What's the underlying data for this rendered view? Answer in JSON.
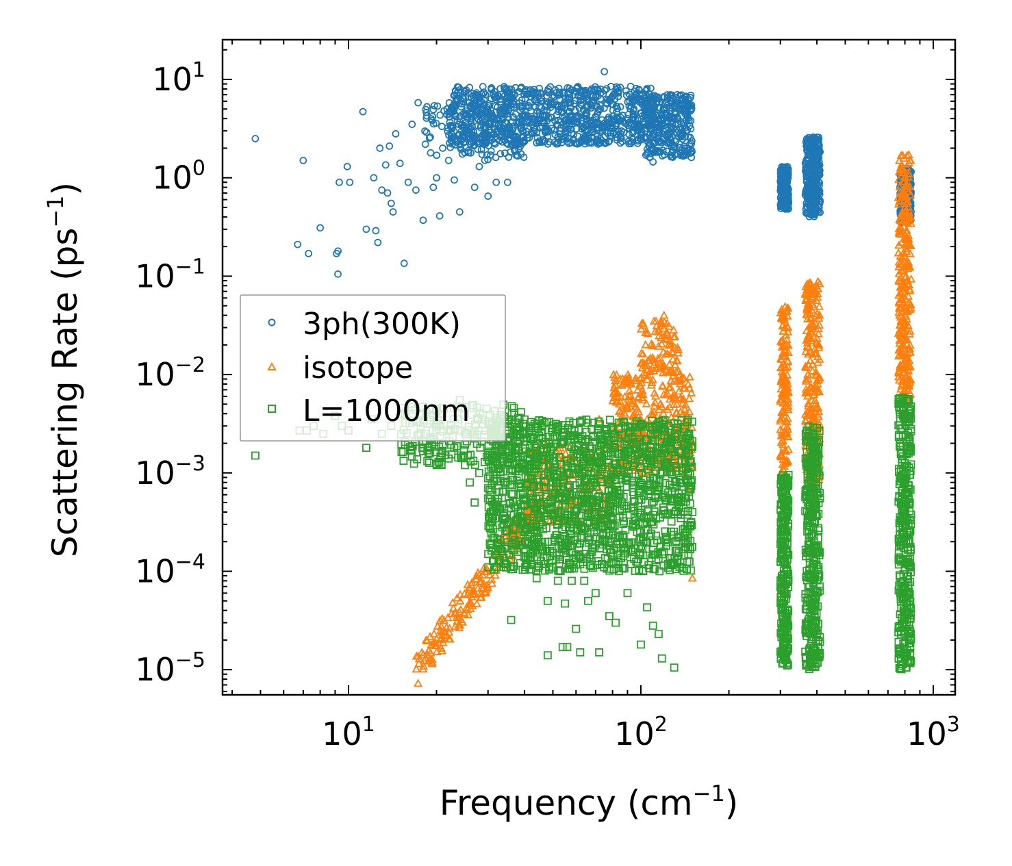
{
  "chart_data": {
    "type": "scatter",
    "xscale": "log",
    "yscale": "log",
    "xlabel": "Frequency (cm",
    "xlabel_sup": "−1",
    "xlabel_end": ")",
    "ylabel": "Scattering Rate (ps",
    "ylabel_sup": "−1",
    "ylabel_end": ")",
    "xlim": [
      3.7,
      1190
    ],
    "ylim": [
      5.5e-06,
      25
    ],
    "x_ticks": [
      {
        "value": 10,
        "base": "10",
        "exp": "1"
      },
      {
        "value": 100,
        "base": "10",
        "exp": "2"
      },
      {
        "value": 1000,
        "base": "10",
        "exp": "3"
      }
    ],
    "y_ticks": [
      {
        "value": 10,
        "base": "10",
        "exp": "1"
      },
      {
        "value": 1,
        "base": "10",
        "exp": "0"
      },
      {
        "value": 0.1,
        "base": "10",
        "exp": "−1"
      },
      {
        "value": 0.01,
        "base": "10",
        "exp": "−2"
      },
      {
        "value": 0.001,
        "base": "10",
        "exp": "−3"
      },
      {
        "value": 0.0001,
        "base": "10",
        "exp": "−4"
      },
      {
        "value": 1e-05,
        "base": "10",
        "exp": "−5"
      }
    ],
    "grid": false,
    "legend_placement": "center-left",
    "series": [
      {
        "name": "3ph(300K)",
        "marker": "circle",
        "color": "#1f77b4",
        "points": [
          [
            4.8,
            2.5
          ],
          [
            7,
            1.5
          ],
          [
            6.7,
            0.21
          ],
          [
            7.3,
            0.17
          ],
          [
            8,
            0.31
          ],
          [
            9.1,
            0.17
          ],
          [
            9.2,
            0.105
          ],
          [
            9.2,
            0.18
          ],
          [
            9.3,
            0.9
          ],
          [
            9.9,
            1.3
          ],
          [
            10.1,
            0.9
          ],
          [
            11.2,
            4.7
          ],
          [
            11.5,
            0.3
          ],
          [
            12.2,
            1.0
          ],
          [
            12.4,
            0.29
          ],
          [
            12.6,
            0.22
          ],
          [
            12.8,
            2.0
          ],
          [
            13,
            0.75
          ],
          [
            13.4,
            1.35
          ],
          [
            13.6,
            0.7
          ],
          [
            13.8,
            2.1
          ],
          [
            14,
            0.55
          ],
          [
            14.2,
            0.45
          ],
          [
            14.5,
            2.8
          ],
          [
            15,
            1.4
          ],
          [
            15.5,
            0.135
          ],
          [
            16,
            0.9
          ],
          [
            16.5,
            3.5
          ],
          [
            17,
            0.75
          ],
          [
            17.3,
            5.8
          ],
          [
            18,
            0.37
          ],
          [
            18.5,
            2.9
          ],
          [
            19.5,
            0.8
          ],
          [
            20,
            1.0
          ],
          [
            20.5,
            0.41
          ],
          [
            21,
            2.0
          ],
          [
            22,
            1.5
          ],
          [
            23,
            0.95
          ],
          [
            24,
            0.45
          ],
          [
            25,
            1.8
          ],
          [
            27,
            0.8
          ],
          [
            28,
            1.3
          ],
          [
            30,
            0.65
          ],
          [
            32,
            0.9
          ],
          [
            35,
            0.9
          ],
          [
            75,
            12
          ],
          [
            104,
            1.7
          ],
          [
            110,
            1.45
          ]
        ],
        "bands": [
          {
            "x": [
              22,
              110
            ],
            "y": [
              2.2,
              8.5
            ],
            "n": 900
          },
          {
            "x": [
              105,
              150
            ],
            "y": [
              1.6,
              7
            ],
            "n": 300
          },
          {
            "x": [
              18,
              40
            ],
            "y": [
              1.5,
              6
            ],
            "n": 150
          },
          {
            "x": [
              300,
              320
            ],
            "y": [
              0.48,
              1.3
            ],
            "n": 200
          },
          {
            "x": [
              365,
              410
            ],
            "y": [
              0.4,
              2.6
            ],
            "n": 300
          },
          {
            "x": [
              770,
              840
            ],
            "y": [
              0.35,
              1.25
            ],
            "n": 250
          }
        ]
      },
      {
        "name": "isotope",
        "marker": "triangle",
        "color": "#ff7f0e",
        "points": [
          [
            150,
            8.5e-05
          ],
          [
            148,
            0.0007
          ],
          [
            140,
            0.0013
          ],
          [
            35,
            0.0003
          ],
          [
            72,
            0.0035
          ],
          [
            85,
            0.009
          ],
          [
            100,
            0.013
          ],
          [
            110,
            0.014
          ],
          [
            120,
            0.04
          ]
        ],
        "powerlaw": {
          "x": [
            17,
            45
          ],
          "x0": 17,
          "y0": 1e-05,
          "exponent": 4,
          "spread": 1.5,
          "n": 220
        },
        "bands": [
          {
            "x": [
              40,
              80
            ],
            "y": [
              0.0003,
              0.002
            ],
            "n": 200
          },
          {
            "x": [
              80,
              100
            ],
            "y": [
              0.001,
              0.01
            ],
            "n": 150
          },
          {
            "x": [
              100,
              135
            ],
            "y": [
              0.001,
              0.035
            ],
            "n": 250
          },
          {
            "x": [
              135,
              150
            ],
            "y": [
              0.001,
              0.01
            ],
            "n": 60
          },
          {
            "x": [
              300,
              320
            ],
            "y": [
              0.001,
              0.05
            ],
            "n": 150
          },
          {
            "x": [
              365,
              410
            ],
            "y": [
              0.0008,
              0.09
            ],
            "n": 250
          },
          {
            "x": [
              760,
              840
            ],
            "y": [
              0.005,
              1.8
            ],
            "n": 300
          }
        ]
      },
      {
        "name": "L=1000nm",
        "marker": "square",
        "color": "#2ca02c",
        "points": [
          [
            4.8,
            0.0015
          ],
          [
            6.8,
            0.0027
          ],
          [
            7.2,
            0.0027
          ],
          [
            7.6,
            0.003
          ],
          [
            8.2,
            0.0025
          ],
          [
            9,
            0.0038
          ],
          [
            9.5,
            0.003
          ],
          [
            10,
            0.0027
          ],
          [
            11.5,
            0.0018
          ],
          [
            12,
            0.0035
          ],
          [
            13,
            0.0025
          ],
          [
            14,
            0.003
          ],
          [
            15,
            0.004
          ],
          [
            16.5,
            0.005
          ],
          [
            18,
            0.0032
          ],
          [
            19,
            0.0016
          ],
          [
            20,
            0.0012
          ],
          [
            21,
            0.004
          ],
          [
            22,
            0.0014
          ],
          [
            23,
            0.0018
          ],
          [
            24,
            0.0055
          ],
          [
            25,
            0.0012
          ],
          [
            26,
            0.0008
          ],
          [
            27,
            0.0005
          ],
          [
            28,
            0.001
          ],
          [
            30,
            0.00055
          ],
          [
            30,
            0.0007
          ],
          [
            32,
            0.0004
          ],
          [
            34,
            0.0003
          ],
          [
            36,
            3.2e-05
          ],
          [
            38,
            0.0004
          ],
          [
            40,
            0.00025
          ],
          [
            42,
            0.00013
          ],
          [
            44,
            8.5e-05
          ],
          [
            48,
            5e-05
          ],
          [
            48,
            1.4e-05
          ],
          [
            52,
            8e-05
          ],
          [
            54,
            1.7e-05
          ],
          [
            55,
            4.7e-05
          ],
          [
            56,
            1.7e-05
          ],
          [
            58,
            8e-05
          ],
          [
            60,
            2.6e-05
          ],
          [
            62,
            1.5e-05
          ],
          [
            64,
            8e-05
          ],
          [
            66,
            5e-05
          ],
          [
            70,
            6e-05
          ],
          [
            72,
            1.5e-05
          ],
          [
            78,
            3.5e-05
          ],
          [
            82,
            3e-05
          ],
          [
            90,
            6e-05
          ],
          [
            100,
            1.8e-05
          ],
          [
            105,
            4.3e-05
          ],
          [
            110,
            2.8e-05
          ],
          [
            115,
            2.3e-05
          ],
          [
            118,
            1.3e-05
          ],
          [
            130,
            1.05e-05
          ],
          [
            140,
            0.0004
          ],
          [
            145,
            0.001
          ],
          [
            150,
            0.0004
          ]
        ],
        "bands": [
          {
            "x": [
              30,
              150
            ],
            "y": [
              0.0001,
              0.0035
            ],
            "n": 1500
          },
          {
            "x": [
              15,
              40
            ],
            "y": [
              0.0012,
              0.005
            ],
            "n": 200
          },
          {
            "x": [
              300,
              320
            ],
            "y": [
              1.1e-05,
              0.001
            ],
            "n": 250
          },
          {
            "x": [
              365,
              410
            ],
            "y": [
              1e-05,
              0.003
            ],
            "n": 350
          },
          {
            "x": [
              760,
              840
            ],
            "y": [
              1e-05,
              0.006
            ],
            "n": 350
          }
        ]
      }
    ]
  }
}
